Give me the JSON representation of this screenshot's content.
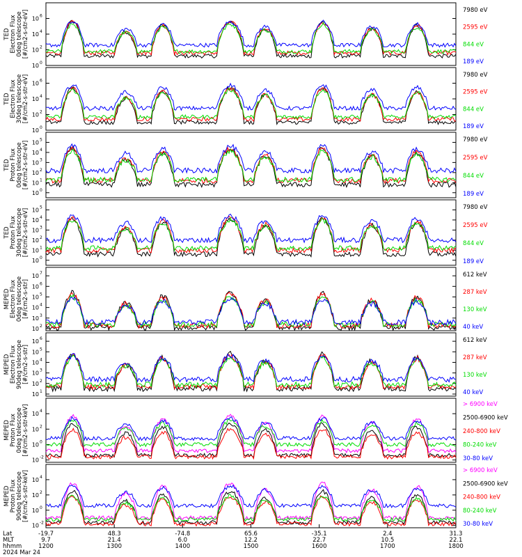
{
  "chart_data": [
    {
      "type": "line",
      "ylabel_lines": [
        "TED",
        "Electron Flux",
        "0deg telescope",
        "[#/cm2-s-str-eV]"
      ],
      "y_ticks": [
        {
          "exp": 6,
          "label": "10",
          "sup": "6"
        },
        {
          "exp": 4,
          "label": "10",
          "sup": "4"
        },
        {
          "exp": 2,
          "label": "10",
          "sup": "2"
        },
        {
          "exp": 0,
          "label": "10",
          "sup": "0"
        }
      ],
      "ylim_exp": [
        0,
        8
      ],
      "y_scale": "log",
      "series": [
        {
          "name": "7980 eV",
          "color": "#000000"
        },
        {
          "name": "2595 eV",
          "color": "#ff0000"
        },
        {
          "name": "844 eV",
          "color": "#00dd00"
        },
        {
          "name": "189 eV",
          "color": "#0000ff"
        }
      ],
      "base_levels": [
        1.2,
        1.6,
        1.8,
        2.6
      ]
    },
    {
      "type": "line",
      "ylabel_lines": [
        "TED",
        "Electron Flux",
        "30deg telescope",
        "[#/cm2-s-str-eV]"
      ],
      "y_ticks": [
        {
          "exp": 6,
          "label": "10",
          "sup": "6"
        },
        {
          "exp": 4,
          "label": "10",
          "sup": "4"
        },
        {
          "exp": 2,
          "label": "10",
          "sup": "2"
        },
        {
          "exp": 0,
          "label": "10",
          "sup": "0"
        }
      ],
      "ylim_exp": [
        0,
        8
      ],
      "y_scale": "log",
      "series": [
        {
          "name": "7980 eV",
          "color": "#000000"
        },
        {
          "name": "2595 eV",
          "color": "#ff0000"
        },
        {
          "name": "844 eV",
          "color": "#00dd00"
        },
        {
          "name": "189 eV",
          "color": "#0000ff"
        }
      ],
      "base_levels": [
        1.0,
        1.4,
        1.7,
        2.8
      ]
    },
    {
      "type": "line",
      "ylabel_lines": [
        "TED",
        "Proton Flux",
        "0deg telescope",
        "[#/cm2-s-str-eV]"
      ],
      "y_ticks": [
        {
          "exp": 5,
          "label": "10",
          "sup": "5"
        },
        {
          "exp": 4,
          "label": "10",
          "sup": "4"
        },
        {
          "exp": 3,
          "label": "10",
          "sup": "3"
        },
        {
          "exp": 2,
          "label": "10",
          "sup": "2"
        },
        {
          "exp": 1,
          "label": "10",
          "sup": "1"
        },
        {
          "exp": 0,
          "label": "10",
          "sup": "0"
        }
      ],
      "ylim_exp": [
        -0.5,
        6
      ],
      "y_scale": "log",
      "series": [
        {
          "name": "7980 eV",
          "color": "#000000"
        },
        {
          "name": "2595 eV",
          "color": "#ff0000"
        },
        {
          "name": "844 eV",
          "color": "#00dd00"
        },
        {
          "name": "189 eV",
          "color": "#0000ff"
        }
      ],
      "base_levels": [
        0.8,
        1.2,
        1.3,
        2.2
      ]
    },
    {
      "type": "line",
      "ylabel_lines": [
        "TED",
        "Proton Flux",
        "30deg telescope",
        "[#/cm2-s-str-eV]"
      ],
      "y_ticks": [
        {
          "exp": 5,
          "label": "10",
          "sup": "5"
        },
        {
          "exp": 4,
          "label": "10",
          "sup": "4"
        },
        {
          "exp": 3,
          "label": "10",
          "sup": "3"
        },
        {
          "exp": 2,
          "label": "10",
          "sup": "2"
        },
        {
          "exp": 1,
          "label": "10",
          "sup": "1"
        },
        {
          "exp": 0,
          "label": "10",
          "sup": "0"
        }
      ],
      "ylim_exp": [
        -0.5,
        6
      ],
      "y_scale": "log",
      "series": [
        {
          "name": "7980 eV",
          "color": "#000000"
        },
        {
          "name": "2595 eV",
          "color": "#ff0000"
        },
        {
          "name": "844 eV",
          "color": "#00dd00"
        },
        {
          "name": "189 eV",
          "color": "#0000ff"
        }
      ],
      "base_levels": [
        0.6,
        1.0,
        1.2,
        2.0
      ]
    },
    {
      "type": "line",
      "ylabel_lines": [
        "MEPED",
        "Electron Flux",
        "0deg telescope",
        "[#/cm2-s-str]"
      ],
      "y_ticks": [
        {
          "exp": 7,
          "label": "10",
          "sup": "7"
        },
        {
          "exp": 6,
          "label": "10",
          "sup": "6"
        },
        {
          "exp": 5,
          "label": "10",
          "sup": "5"
        },
        {
          "exp": 4,
          "label": "10",
          "sup": "4"
        },
        {
          "exp": 3,
          "label": "10",
          "sup": "3"
        },
        {
          "exp": 2,
          "label": "10",
          "sup": "2"
        }
      ],
      "ylim_exp": [
        1.8,
        7.8
      ],
      "y_scale": "log",
      "series": [
        {
          "name": "612 keV",
          "color": "#000000"
        },
        {
          "name": "287 keV",
          "color": "#ff0000"
        },
        {
          "name": "130 keV",
          "color": "#00dd00"
        },
        {
          "name": "40 keV",
          "color": "#0000ff"
        }
      ],
      "base_levels": [
        2.1,
        2.3,
        2.4,
        2.6
      ]
    },
    {
      "type": "line",
      "ylabel_lines": [
        "MEPED",
        "Electron Flux",
        "90deg telescope",
        "[#/cm2-s-str]"
      ],
      "y_ticks": [
        {
          "exp": 6,
          "label": "10",
          "sup": "6"
        },
        {
          "exp": 5,
          "label": "10",
          "sup": "5"
        },
        {
          "exp": 4,
          "label": "10",
          "sup": "4"
        },
        {
          "exp": 3,
          "label": "10",
          "sup": "3"
        },
        {
          "exp": 2,
          "label": "10",
          "sup": "2"
        },
        {
          "exp": 1,
          "label": "10",
          "sup": "1"
        }
      ],
      "ylim_exp": [
        0.8,
        6.8
      ],
      "y_scale": "log",
      "series": [
        {
          "name": "612 keV",
          "color": "#000000"
        },
        {
          "name": "287 keV",
          "color": "#ff0000"
        },
        {
          "name": "130 keV",
          "color": "#00dd00"
        },
        {
          "name": "40 keV",
          "color": "#0000ff"
        }
      ],
      "base_levels": [
        1.5,
        1.7,
        1.9,
        2.4
      ]
    },
    {
      "type": "line",
      "ylabel_lines": [
        "MEPED",
        "Proton Flux",
        "0deg telescope",
        "[#/cm2-s-str-keV]"
      ],
      "y_ticks": [
        {
          "exp": 4,
          "label": "10",
          "sup": "4"
        },
        {
          "exp": 2,
          "label": "10",
          "sup": "2"
        },
        {
          "exp": 0,
          "label": "10",
          "sup": "0"
        },
        {
          "exp": -2,
          "label": "10",
          "sup": "-2"
        }
      ],
      "ylim_exp": [
        -2.3,
        6
      ],
      "y_scale": "log",
      "series": [
        {
          "name": "> 6900 keV",
          "color": "#ff00ff"
        },
        {
          "name": "2500-6900 keV",
          "color": "#000000"
        },
        {
          "name": "240-800 keV",
          "color": "#ff0000"
        },
        {
          "name": "80-240 keV",
          "color": "#00dd00"
        },
        {
          "name": "30-80 keV",
          "color": "#0000ff"
        }
      ],
      "base_levels": [
        -0.8,
        -1.4,
        -1.6,
        0.0,
        0.8
      ]
    },
    {
      "type": "line",
      "ylabel_lines": [
        "MEPED",
        "Proton Flux",
        "90deg telescope",
        "[#/cm2-s-str-keV]"
      ],
      "y_ticks": [
        {
          "exp": 4,
          "label": "10",
          "sup": "4"
        },
        {
          "exp": 2,
          "label": "10",
          "sup": "2"
        },
        {
          "exp": 0,
          "label": "10",
          "sup": "0"
        },
        {
          "exp": -2,
          "label": "10",
          "sup": "-2"
        }
      ],
      "ylim_exp": [
        -2.3,
        6
      ],
      "y_scale": "log",
      "series": [
        {
          "name": "> 6900 keV",
          "color": "#ff00ff"
        },
        {
          "name": "2500-6900 keV",
          "color": "#000000"
        },
        {
          "name": "240-800 keV",
          "color": "#ff0000"
        },
        {
          "name": "80-240 keV",
          "color": "#00dd00"
        },
        {
          "name": "30-80 keV",
          "color": "#0000ff"
        }
      ],
      "base_levels": [
        -1.0,
        -1.6,
        -1.8,
        -1.2,
        0.6
      ]
    }
  ],
  "x_axis": {
    "row_labels": [
      "Lat",
      "MLT",
      "hhmm"
    ],
    "date_label": "2024 Mar 24",
    "columns": [
      {
        "lat": "-19.7",
        "mlt": "9.7",
        "hhmm": "1200"
      },
      {
        "lat": "48.3",
        "mlt": "21.4",
        "hhmm": "1300"
      },
      {
        "lat": "-74.8",
        "mlt": "6.0",
        "hhmm": "1400"
      },
      {
        "lat": "65.6",
        "mlt": "12.2",
        "hhmm": "1500"
      },
      {
        "lat": "-35.1",
        "mlt": "22.7",
        "hhmm": "1600"
      },
      {
        "lat": "2.4",
        "mlt": "10.5",
        "hhmm": "1700"
      },
      {
        "lat": "31.3",
        "mlt": "22.1",
        "hhmm": "1800"
      }
    ]
  }
}
